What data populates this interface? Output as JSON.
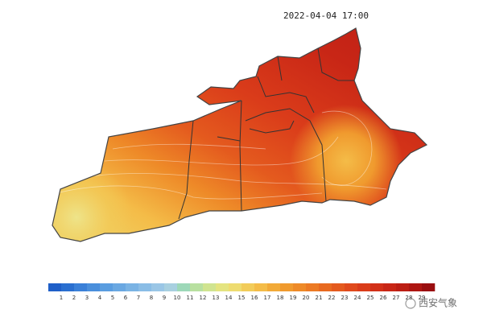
{
  "title": "2022-04-04 17:00",
  "legend": {
    "ticks": [
      1,
      2,
      3,
      4,
      5,
      6,
      7,
      8,
      9,
      10,
      11,
      12,
      13,
      14,
      15,
      16,
      17,
      18,
      19,
      20,
      21,
      22,
      23,
      24,
      25,
      26,
      27,
      28,
      29
    ],
    "colors": [
      "#1f5fc8",
      "#2a6fd0",
      "#3a80d8",
      "#4a8fdc",
      "#5a9de0",
      "#6aa8e2",
      "#7ab3e4",
      "#8abde6",
      "#9ac6e6",
      "#a8d0e0",
      "#9dd8b8",
      "#b8e0a0",
      "#d0e490",
      "#e4e480",
      "#eedc70",
      "#f2cc5a",
      "#f4bc48",
      "#f2aa38",
      "#f09a2e",
      "#ee8a28",
      "#ec7a24",
      "#e86a20",
      "#e45a1e",
      "#e04a1c",
      "#da3c1a",
      "#d23018",
      "#c82616",
      "#bc1e14",
      "#ae1612",
      "#9a0e10"
    ]
  },
  "watermark": "西安气象"
}
